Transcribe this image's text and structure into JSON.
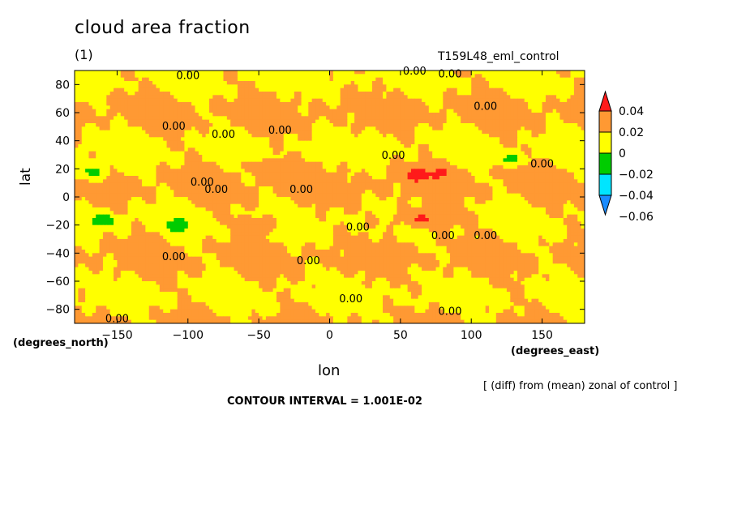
{
  "chart_data": {
    "type": "heatmap",
    "title": "cloud area fraction",
    "subtitle": "(1)",
    "dataset": "T159L48_eml_control",
    "xlabel": "lon",
    "ylabel": "lat",
    "x_units": "(degrees_east)",
    "y_units": "(degrees_north)",
    "xlim": [
      -180,
      180
    ],
    "ylim": [
      -90,
      90
    ],
    "x_ticks": [
      -150,
      -100,
      -50,
      0,
      50,
      100,
      150
    ],
    "x_tick_labels": [
      "−150",
      "−100",
      "−50",
      "0",
      "50",
      "100",
      "150"
    ],
    "y_ticks": [
      80,
      60,
      40,
      20,
      0,
      -20,
      -40,
      -60,
      -80
    ],
    "y_tick_labels": [
      "80",
      "60",
      "40",
      "20",
      "0",
      "−20",
      "−40",
      "−60",
      "−80"
    ],
    "colorbar": {
      "labels": [
        "0.04",
        "0.02",
        "0",
        "−0.02",
        "−0.04",
        "−0.06"
      ],
      "levels": [
        -0.06,
        -0.04,
        -0.02,
        0,
        0.02,
        0.04
      ],
      "colors": [
        "#1a8cff",
        "#00e5ff",
        "#00cc00",
        "#ffff00",
        "#ff9933",
        "#ff1a1a"
      ]
    },
    "contour_labels": [
      "0.00",
      "0.00",
      "0.00",
      "0.00",
      "0.00",
      "0.00",
      "0.00",
      "0.00",
      "0.00",
      "0.00",
      "0.00",
      "0.00",
      "0.00",
      "0.00",
      "0.00",
      "0.00",
      "0.00",
      "0.00",
      "0.00",
      "0.00"
    ],
    "note": "[ (diff) from (mean) zonal of control ]",
    "contour_interval": "CONTOUR INTERVAL = 1.001E-02"
  }
}
